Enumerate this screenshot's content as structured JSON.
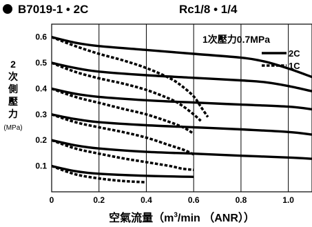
{
  "header": {
    "model": "B7019-1 • 2C",
    "port": "Rc1/8 • 1/4"
  },
  "axis": {
    "ylabel": "2次側壓力",
    "yunit": "(MPa)",
    "xlabel_before": "空氣流量（m",
    "xlabel_sup": "3",
    "xlabel_after": "/min （ANR））"
  },
  "colors": {
    "line": "#000000",
    "grid": "#000000",
    "background": "#ffffff"
  },
  "chart_data": {
    "type": "line",
    "annotation": "1次壓力0.7MPa",
    "x_ticks": [
      "0",
      "0.2",
      "0.4",
      "0.6",
      "0.8",
      "1.0"
    ],
    "y_ticks": [
      "0.1",
      "0.2",
      "0.3",
      "0.4",
      "0.5",
      "0.6"
    ],
    "xlim": [
      0,
      1.1
    ],
    "ylim": [
      0,
      0.65
    ],
    "grid": true,
    "legend_position": "top-right",
    "series": [
      {
        "name": "2C",
        "style": "solid",
        "setpoint": 0.6,
        "points": [
          [
            0,
            0.6
          ],
          [
            0.1,
            0.578
          ],
          [
            0.2,
            0.565
          ],
          [
            0.4,
            0.55
          ],
          [
            0.6,
            0.535
          ],
          [
            0.8,
            0.52
          ],
          [
            0.9,
            0.505
          ],
          [
            1.0,
            0.478
          ],
          [
            1.1,
            0.445
          ]
        ]
      },
      {
        "name": "2C",
        "style": "solid",
        "setpoint": 0.5,
        "points": [
          [
            0,
            0.5
          ],
          [
            0.1,
            0.48
          ],
          [
            0.2,
            0.466
          ],
          [
            0.4,
            0.452
          ],
          [
            0.6,
            0.442
          ],
          [
            0.8,
            0.432
          ],
          [
            0.9,
            0.425
          ],
          [
            1.0,
            0.41
          ],
          [
            1.1,
            0.39
          ]
        ]
      },
      {
        "name": "2C",
        "style": "solid",
        "setpoint": 0.4,
        "points": [
          [
            0,
            0.4
          ],
          [
            0.1,
            0.38
          ],
          [
            0.2,
            0.368
          ],
          [
            0.4,
            0.355
          ],
          [
            0.6,
            0.346
          ],
          [
            0.8,
            0.338
          ],
          [
            1.0,
            0.33
          ],
          [
            1.1,
            0.32
          ]
        ]
      },
      {
        "name": "2C",
        "style": "solid",
        "setpoint": 0.3,
        "points": [
          [
            0,
            0.3
          ],
          [
            0.1,
            0.282
          ],
          [
            0.2,
            0.27
          ],
          [
            0.4,
            0.258
          ],
          [
            0.6,
            0.25
          ],
          [
            0.8,
            0.242
          ],
          [
            1.0,
            0.232
          ],
          [
            1.1,
            0.222
          ]
        ]
      },
      {
        "name": "2C",
        "style": "solid",
        "setpoint": 0.2,
        "points": [
          [
            0,
            0.2
          ],
          [
            0.1,
            0.18
          ],
          [
            0.2,
            0.168
          ],
          [
            0.4,
            0.155
          ],
          [
            0.6,
            0.148
          ],
          [
            0.8,
            0.14
          ],
          [
            1.0,
            0.133
          ],
          [
            1.1,
            0.128
          ]
        ]
      },
      {
        "name": "2C",
        "style": "solid",
        "setpoint": 0.1,
        "points": [
          [
            0,
            0.1
          ],
          [
            0.1,
            0.08
          ],
          [
            0.2,
            0.07
          ],
          [
            0.4,
            0.062
          ],
          [
            0.6,
            0.058
          ]
        ]
      },
      {
        "name": "1C",
        "style": "dotted",
        "setpoint": 0.6,
        "points": [
          [
            0,
            0.6
          ],
          [
            0.1,
            0.565
          ],
          [
            0.2,
            0.535
          ],
          [
            0.3,
            0.51
          ],
          [
            0.4,
            0.48
          ],
          [
            0.5,
            0.44
          ],
          [
            0.55,
            0.41
          ],
          [
            0.6,
            0.37
          ],
          [
            0.63,
            0.33
          ],
          [
            0.66,
            0.29
          ]
        ]
      },
      {
        "name": "1C",
        "style": "dotted",
        "setpoint": 0.5,
        "points": [
          [
            0,
            0.5
          ],
          [
            0.1,
            0.465
          ],
          [
            0.2,
            0.44
          ],
          [
            0.3,
            0.42
          ],
          [
            0.4,
            0.395
          ],
          [
            0.5,
            0.36
          ],
          [
            0.55,
            0.335
          ],
          [
            0.6,
            0.3
          ],
          [
            0.63,
            0.275
          ]
        ]
      },
      {
        "name": "1C",
        "style": "dotted",
        "setpoint": 0.4,
        "points": [
          [
            0,
            0.4
          ],
          [
            0.1,
            0.368
          ],
          [
            0.2,
            0.345
          ],
          [
            0.3,
            0.322
          ],
          [
            0.4,
            0.3
          ],
          [
            0.5,
            0.27
          ],
          [
            0.56,
            0.248
          ],
          [
            0.6,
            0.225
          ]
        ]
      },
      {
        "name": "1C",
        "style": "dotted",
        "setpoint": 0.3,
        "points": [
          [
            0,
            0.3
          ],
          [
            0.1,
            0.27
          ],
          [
            0.2,
            0.25
          ],
          [
            0.3,
            0.232
          ],
          [
            0.4,
            0.21
          ],
          [
            0.5,
            0.18
          ],
          [
            0.56,
            0.162
          ],
          [
            0.6,
            0.145
          ]
        ]
      },
      {
        "name": "1C",
        "style": "dotted",
        "setpoint": 0.2,
        "points": [
          [
            0,
            0.2
          ],
          [
            0.1,
            0.168
          ],
          [
            0.2,
            0.148
          ],
          [
            0.3,
            0.13
          ],
          [
            0.4,
            0.115
          ],
          [
            0.5,
            0.1
          ],
          [
            0.55,
            0.09
          ],
          [
            0.6,
            0.085
          ]
        ]
      },
      {
        "name": "1C",
        "style": "dotted",
        "setpoint": 0.1,
        "points": [
          [
            0,
            0.1
          ],
          [
            0.1,
            0.068
          ],
          [
            0.2,
            0.052
          ],
          [
            0.3,
            0.042
          ],
          [
            0.4,
            0.037
          ]
        ]
      }
    ]
  }
}
